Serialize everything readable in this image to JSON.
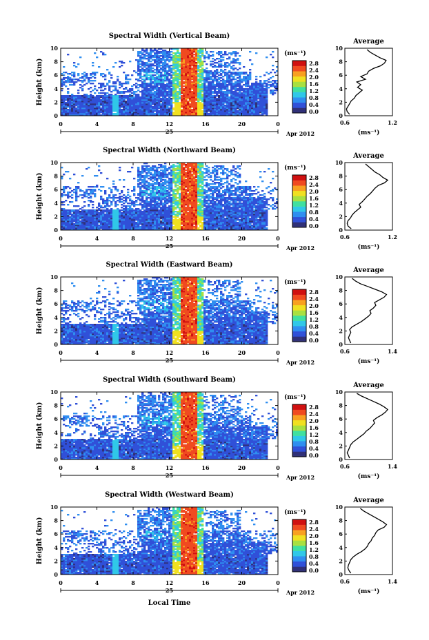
{
  "figure": {
    "date_label": "Apr 2012",
    "day_label": "25",
    "xlabel": "Local Time",
    "ylabel": "Height (km)",
    "unit_label": "(ms⁻¹)",
    "avg_title": "Average",
    "avg_xlabel": "(ms⁻¹)",
    "x_ticks": [
      "0",
      "4",
      "8",
      "12",
      "16",
      "20",
      "0"
    ],
    "y_ticks": [
      "0",
      "2",
      "4",
      "6",
      "8",
      "10"
    ],
    "colorbar_ticks": [
      "2.8",
      "2.4",
      "2.0",
      "1.6",
      "1.2",
      "0.8",
      "0.4",
      "0.0"
    ],
    "colors": {
      "cold": "#3a3fc8",
      "hot": "#ee3a2a",
      "colormap": [
        "#303078",
        "#3050d8",
        "#2f8ef0",
        "#30c8e8",
        "#40e0a0",
        "#a8e040",
        "#f0e020",
        "#f8a020",
        "#f04a20",
        "#d01010"
      ]
    }
  },
  "chart_data": [
    {
      "type": "heatmap",
      "title": "Spectral Width (Vertical Beam)",
      "xlim": [
        0,
        24
      ],
      "ylim": [
        0,
        10
      ],
      "colorbar_range": [
        0.0,
        3.0
      ],
      "avg_xlim": [
        0.6,
        1.2
      ],
      "avg_xticks": [
        "0.6",
        "1.2"
      ],
      "average_profile": {
        "height_km": [
          0.2,
          0.6,
          1.0,
          1.4,
          1.8,
          2.2,
          2.6,
          3.0,
          3.4,
          3.8,
          4.2,
          4.6,
          5.0,
          5.4,
          5.8,
          6.2,
          6.6,
          7.0,
          7.4,
          7.8,
          8.2,
          8.6,
          9.0,
          9.4,
          9.8
        ],
        "value": [
          0.66,
          0.63,
          0.62,
          0.64,
          0.66,
          0.68,
          0.72,
          0.74,
          0.78,
          0.82,
          0.76,
          0.8,
          0.75,
          0.86,
          0.8,
          0.88,
          0.9,
          0.96,
          1.05,
          1.1,
          1.12,
          1.04,
          0.98,
          0.92,
          0.88
        ]
      }
    },
    {
      "type": "heatmap",
      "title": "Spectral Width (Northward Beam)",
      "xlim": [
        0,
        24
      ],
      "ylim": [
        0,
        10
      ],
      "colorbar_range": [
        0.0,
        3.0
      ],
      "avg_xlim": [
        0.6,
        1.2
      ],
      "avg_xticks": [
        "0.6",
        "1.2"
      ],
      "average_profile": {
        "height_km": [
          0.2,
          0.6,
          1.0,
          1.4,
          1.8,
          2.2,
          2.6,
          3.0,
          3.4,
          3.8,
          4.2,
          4.6,
          5.0,
          5.4,
          5.8,
          6.2,
          6.6,
          7.0,
          7.4,
          7.8,
          8.2,
          8.6,
          9.0,
          9.4,
          9.8
        ],
        "value": [
          0.68,
          0.64,
          0.63,
          0.64,
          0.67,
          0.69,
          0.72,
          0.76,
          0.8,
          0.78,
          0.82,
          0.85,
          0.88,
          0.92,
          0.95,
          0.98,
          1.02,
          1.1,
          1.14,
          1.08,
          1.04,
          0.98,
          0.94,
          0.9,
          0.86
        ]
      }
    },
    {
      "type": "heatmap",
      "title": "Spectral Width (Eastward Beam)",
      "xlim": [
        0,
        24
      ],
      "ylim": [
        0,
        10
      ],
      "colorbar_range": [
        0.0,
        3.0
      ],
      "avg_xlim": [
        0.6,
        1.4
      ],
      "avg_xticks": [
        "0.6",
        "1.4"
      ],
      "average_profile": {
        "height_km": [
          0.2,
          0.6,
          1.0,
          1.4,
          1.8,
          2.2,
          2.6,
          3.0,
          3.4,
          3.8,
          4.2,
          4.6,
          5.0,
          5.4,
          5.8,
          6.2,
          6.6,
          7.0,
          7.4,
          7.8,
          8.2,
          8.6,
          9.0,
          9.4,
          9.8
        ],
        "value": [
          0.7,
          0.68,
          0.66,
          0.68,
          0.7,
          0.68,
          0.72,
          0.8,
          0.88,
          0.94,
          1.0,
          1.04,
          1.02,
          1.08,
          1.12,
          1.1,
          1.18,
          1.26,
          1.3,
          1.22,
          1.1,
          0.98,
          0.86,
          0.78,
          0.72
        ]
      }
    },
    {
      "type": "heatmap",
      "title": "Spectral Width (Southward Beam)",
      "xlim": [
        0,
        24
      ],
      "ylim": [
        0,
        10
      ],
      "colorbar_range": [
        0.0,
        3.0
      ],
      "avg_xlim": [
        0.6,
        1.4
      ],
      "avg_xticks": [
        "0.6",
        "1.4"
      ],
      "average_profile": {
        "height_km": [
          0.2,
          0.6,
          1.0,
          1.4,
          1.8,
          2.2,
          2.6,
          3.0,
          3.4,
          3.8,
          4.2,
          4.6,
          5.0,
          5.4,
          5.8,
          6.2,
          6.6,
          7.0,
          7.4,
          7.8,
          8.2,
          8.6,
          9.0,
          9.4,
          9.8
        ],
        "value": [
          0.68,
          0.66,
          0.64,
          0.66,
          0.68,
          0.7,
          0.74,
          0.8,
          0.86,
          0.92,
          0.96,
          1.02,
          1.06,
          1.1,
          1.08,
          1.14,
          1.22,
          1.28,
          1.32,
          1.26,
          1.18,
          1.08,
          0.98,
          0.88,
          0.8
        ]
      }
    },
    {
      "type": "heatmap",
      "title": "Spectral Width (Westward Beam)",
      "xlim": [
        0,
        24
      ],
      "ylim": [
        0,
        10
      ],
      "colorbar_range": [
        0.0,
        3.0
      ],
      "avg_xlim": [
        0.6,
        1.4
      ],
      "avg_xticks": [
        "0.6",
        "1.4"
      ],
      "average_profile": {
        "height_km": [
          0.2,
          0.6,
          1.0,
          1.4,
          1.8,
          2.2,
          2.6,
          3.0,
          3.4,
          3.8,
          4.2,
          4.6,
          5.0,
          5.4,
          5.8,
          6.2,
          6.6,
          7.0,
          7.4,
          7.8,
          8.2,
          8.6,
          9.0,
          9.4,
          9.8
        ],
        "value": [
          0.7,
          0.67,
          0.65,
          0.66,
          0.68,
          0.7,
          0.74,
          0.8,
          0.88,
          0.94,
          0.98,
          1.0,
          1.04,
          1.06,
          1.1,
          1.12,
          1.16,
          1.26,
          1.3,
          1.24,
          1.16,
          1.08,
          1.0,
          0.92,
          0.86
        ]
      }
    }
  ]
}
